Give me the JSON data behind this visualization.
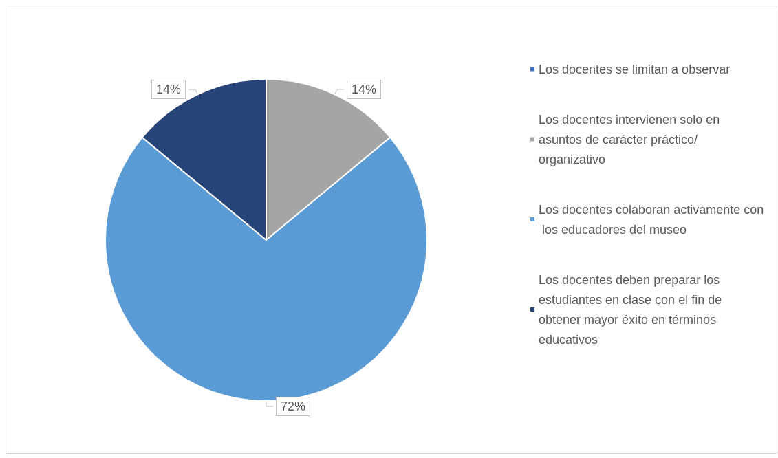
{
  "chart_data": {
    "type": "pie",
    "categories": [
      "Los docentes se limitan a observar",
      "Los docentes intervienen solo en asuntos de carácter práctico/organizativo",
      "Los docentes colaboran activamente con los educadores del museo",
      "Los docentes deben preparar los estudiantes en clase con el fin de obtener mayor éxito en términos educativos"
    ],
    "values": [
      0,
      14,
      72,
      14
    ],
    "colors": [
      "#4472c4",
      "#a5a5a5",
      "#5b9bd5",
      "#264478"
    ],
    "value_labels": [
      null,
      "14%",
      "72%",
      "14%"
    ],
    "legend": "right"
  }
}
